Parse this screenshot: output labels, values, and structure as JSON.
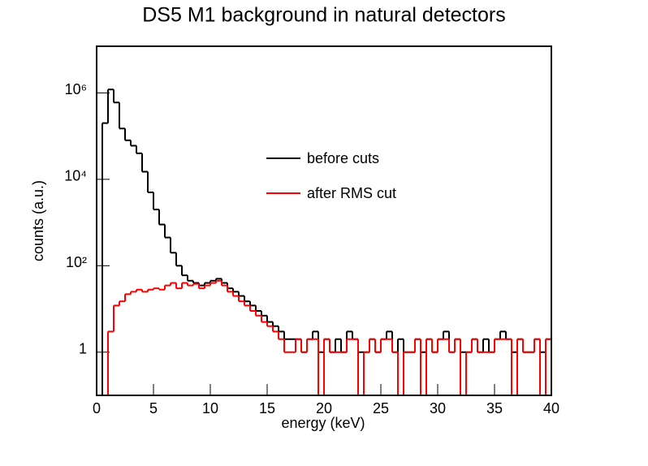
{
  "chart_data": {
    "type": "histogram",
    "title": "DS5 M1 background in natural detectors",
    "x_label": "energy (keV)",
    "y_label": "counts (a.u.)",
    "bins": [
      0,
      0.5,
      1,
      1.5,
      2,
      2.5,
      3,
      3.5,
      4,
      4.5,
      5,
      5.5,
      6,
      6.5,
      7,
      7.5,
      8,
      8.5,
      9,
      9.5,
      10,
      10.5,
      11,
      11.5,
      12,
      12.5,
      13,
      13.5,
      14,
      14.5,
      15,
      15.5,
      16,
      16.5,
      17,
      17.5,
      18,
      18.5,
      19,
      19.5,
      20,
      20.5,
      21,
      21.5,
      22,
      22.5,
      23,
      23.5,
      24,
      24.5,
      25,
      25.5,
      26,
      26.5,
      27,
      27.5,
      28,
      28.5,
      29,
      29.5,
      30,
      30.5,
      31,
      31.5,
      32,
      32.5,
      33,
      33.5,
      34,
      34.5,
      35,
      35.5,
      36,
      36.5,
      37,
      37.5,
      38,
      38.5,
      39,
      39.5,
      40
    ],
    "series": [
      {
        "name": "before cuts",
        "color": "#000000",
        "values": [
          0,
          200000,
          1200000,
          600000,
          150000,
          80000,
          60000,
          40000,
          15000,
          5000,
          2000,
          900,
          450,
          200,
          100,
          60,
          45,
          40,
          35,
          40,
          45,
          50,
          40,
          30,
          25,
          20,
          15,
          12,
          9,
          7,
          5,
          4,
          3,
          2,
          2,
          2,
          1,
          2,
          3,
          1,
          2,
          1,
          2,
          1,
          3,
          2,
          1,
          1,
          2,
          1,
          2,
          3,
          1,
          2,
          1,
          1,
          2,
          1,
          2,
          1,
          2,
          3,
          1,
          2,
          1,
          1,
          2,
          1,
          2,
          1,
          2,
          3,
          2,
          1,
          2,
          1,
          1,
          2,
          1,
          2
        ]
      },
      {
        "name": "after RMS cut",
        "color": "#ff0000",
        "values": [
          0,
          0,
          3,
          12,
          15,
          22,
          25,
          28,
          25,
          28,
          30,
          28,
          35,
          40,
          30,
          40,
          35,
          38,
          30,
          35,
          40,
          45,
          35,
          25,
          20,
          15,
          12,
          9,
          7,
          5,
          4,
          3,
          2,
          1,
          1,
          2,
          1,
          2,
          2,
          0,
          2,
          1,
          1,
          1,
          2,
          2,
          0,
          1,
          2,
          1,
          2,
          2,
          1,
          0,
          1,
          1,
          2,
          0,
          2,
          1,
          2,
          2,
          1,
          2,
          0,
          1,
          2,
          1,
          1,
          1,
          2,
          2,
          2,
          0,
          2,
          1,
          1,
          2,
          0,
          2
        ]
      }
    ],
    "xlim": [
      0,
      40
    ],
    "xticks": [
      0,
      5,
      10,
      15,
      20,
      25,
      30,
      35,
      40
    ],
    "ylim": [
      0.1,
      12000000
    ],
    "ylog": true,
    "yticks": [
      1,
      {
        "value": 100,
        "label": "10²"
      },
      {
        "value": 10000,
        "label": "10⁴"
      },
      {
        "value": 1000000,
        "label": "10⁶"
      }
    ],
    "legend_position": "top-center"
  }
}
